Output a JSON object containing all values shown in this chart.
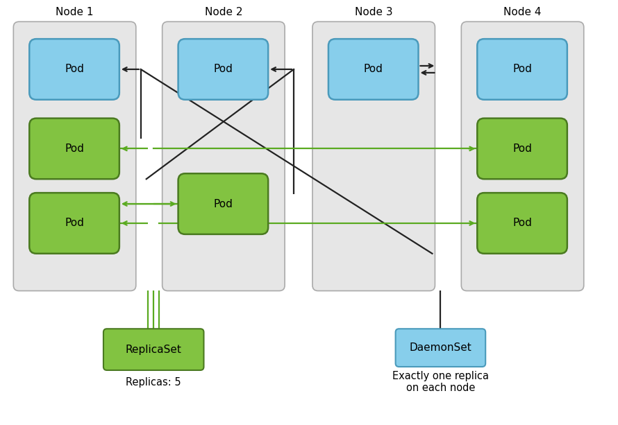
{
  "fig_width": 8.9,
  "fig_height": 6.13,
  "bg_color": "#ffffff",
  "node_bg": "#e6e6e6",
  "node_border": "#aaaaaa",
  "blue_color": "#87CEEB",
  "blue_border": "#4a9abb",
  "green_color": "#82C341",
  "green_border": "#4a7a20",
  "black_arrow": "#222222",
  "green_arrow": "#5aaa20",
  "nodes": [
    "Node 1",
    "Node 2",
    "Node 3",
    "Node 4"
  ],
  "replicaset_label": "ReplicaSet",
  "daemonset_label": "DaemonSet",
  "replicas_text": "Replicas: 5",
  "daemonset_text": "Exactly one replica\non each node"
}
